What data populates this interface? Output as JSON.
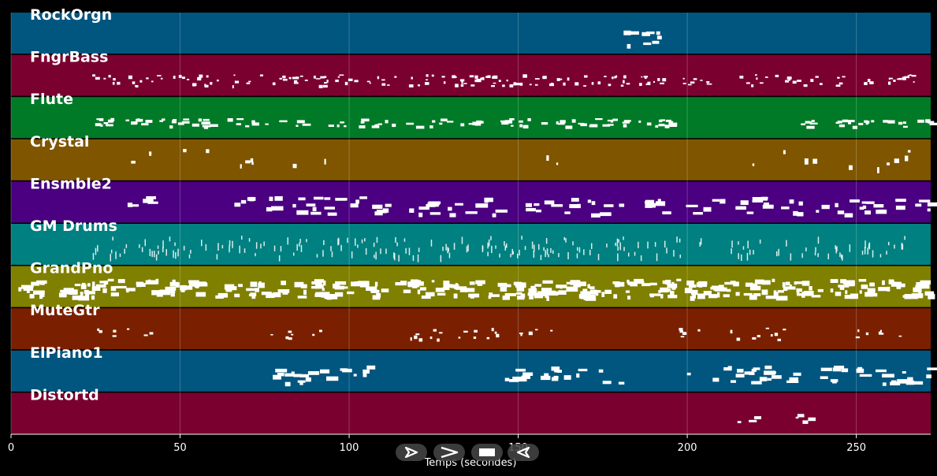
{
  "chart_data": {
    "type": "piano-roll",
    "xlabel": "Temps (secondes)",
    "xlim": [
      0,
      272
    ],
    "xticks": [
      0,
      50,
      100,
      150,
      200,
      250
    ],
    "grid": true,
    "tracks": [
      {
        "name": "RockOrgn",
        "color": "#00567f",
        "density": 0.9,
        "segments": [
          [
            179,
            197
          ]
        ],
        "style": "chord"
      },
      {
        "name": "FngrBass",
        "color": "#7a0030",
        "density": 1.4,
        "segments": [
          [
            24,
            272
          ]
        ],
        "style": "sparse"
      },
      {
        "name": "Flute",
        "color": "#007a26",
        "density": 1.2,
        "segments": [
          [
            24,
            197
          ],
          [
            230,
            272
          ]
        ],
        "style": "melody"
      },
      {
        "name": "Crystal",
        "color": "#7f5500",
        "density": 0.3,
        "segments": [
          [
            32,
            93
          ],
          [
            152,
            162
          ],
          [
            203,
            267
          ]
        ],
        "style": "hits"
      },
      {
        "name": "Ensmble2",
        "color": "#4a0080",
        "density": 1.0,
        "segments": [
          [
            33,
            42
          ],
          [
            66,
            180
          ],
          [
            187,
            272
          ]
        ],
        "style": "chord"
      },
      {
        "name": "GM Drums",
        "color": "#008080",
        "density": 1.6,
        "segments": [
          [
            22,
            266
          ]
        ],
        "style": "drums"
      },
      {
        "name": "GrandPno",
        "color": "#7f7f00",
        "density": 2.4,
        "segments": [
          [
            2,
            272
          ]
        ],
        "style": "dense"
      },
      {
        "name": "MuteGtr",
        "color": "#7a2000",
        "density": 0.8,
        "segments": [
          [
            24,
            41
          ],
          [
            76,
            93
          ],
          [
            114,
            162
          ],
          [
            197,
            230
          ],
          [
            248,
            265
          ]
        ],
        "style": "sparse"
      },
      {
        "name": "ElPiano1",
        "color": "#00567f",
        "density": 1.1,
        "segments": [
          [
            76,
            110
          ],
          [
            145,
            180
          ],
          [
            197,
            272
          ]
        ],
        "style": "chord"
      },
      {
        "name": "Distortd",
        "color": "#7a0030",
        "density": 0.6,
        "segments": [
          [
            214,
            238
          ]
        ],
        "style": "melody"
      }
    ]
  },
  "controls": [
    {
      "name": "play-button",
      "icon": "play-icon"
    },
    {
      "name": "fast-forward-button",
      "icon": "fast-forward-icon"
    },
    {
      "name": "stop-button",
      "icon": "stop-icon"
    },
    {
      "name": "rewind-button",
      "icon": "rewind-icon"
    }
  ]
}
